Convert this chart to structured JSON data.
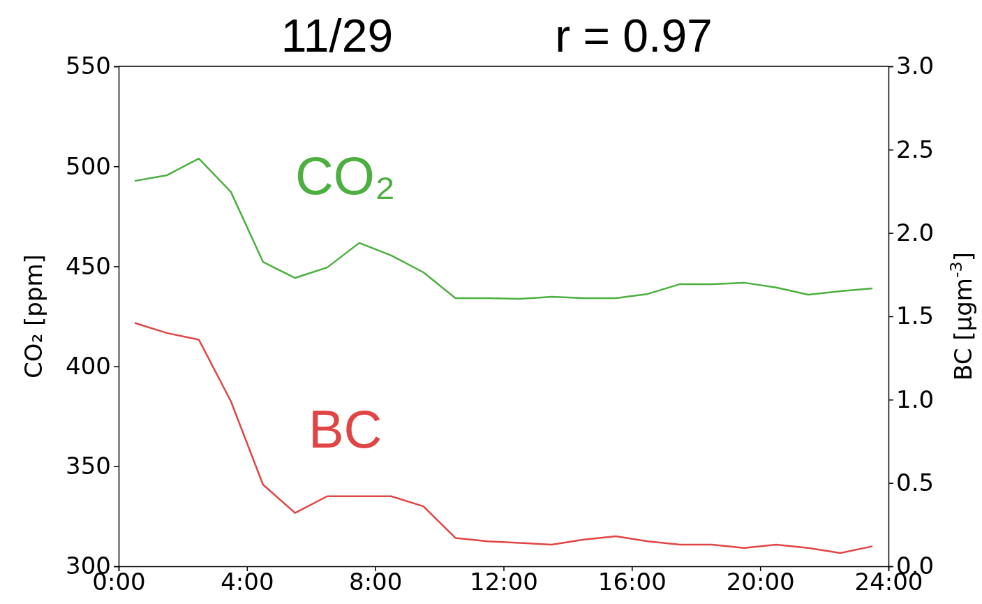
{
  "chart_data": {
    "type": "line",
    "title": "11/29",
    "annotations": [
      "r = 0.97"
    ],
    "xlabel": null,
    "ylabel": "CO₂ [ppm]",
    "y2label": "BC [μgm$^{-3}$]",
    "x": [
      0.5,
      1.5,
      2.5,
      3.5,
      4.5,
      5.5,
      6.5,
      7.5,
      8.5,
      9.5,
      10.5,
      11.5,
      12.5,
      13.5,
      14.5,
      15.5,
      16.5,
      17.5,
      18.5,
      19.5,
      20.5,
      21.5,
      22.5,
      23.5
    ],
    "xlim": [
      0,
      24
    ],
    "xticks": [
      {
        "value": 0,
        "label": "0:00"
      },
      {
        "value": 4,
        "label": "4:00"
      },
      {
        "value": 8,
        "label": "8:00"
      },
      {
        "value": 12,
        "label": "12:00"
      },
      {
        "value": 16,
        "label": "16:00"
      },
      {
        "value": 20,
        "label": "20:00"
      },
      {
        "value": 24,
        "label": "24:00"
      }
    ],
    "ylim": [
      300,
      550
    ],
    "yticks": [
      300,
      350,
      400,
      450,
      500,
      550
    ],
    "y2lim": [
      0,
      3
    ],
    "y2ticks": [
      {
        "value": 0,
        "label": "0.0"
      },
      {
        "value": 0.5,
        "label": "0.5"
      },
      {
        "value": 1,
        "label": "1.0"
      },
      {
        "value": 1.5,
        "label": "1.5"
      },
      {
        "value": 2,
        "label": "2.0"
      },
      {
        "value": 2.5,
        "label": "2.5"
      },
      {
        "value": 3,
        "label": "3.0"
      }
    ],
    "grid": false,
    "legend": false,
    "marker": "none",
    "line_style": "solid",
    "series": [
      {
        "name": "CO₂",
        "color": "#4caf3f",
        "values": [
          492.7,
          495.5,
          503.9,
          487.2,
          452.2,
          444.2,
          449.4,
          461.7,
          455.4,
          447.0,
          434.1,
          434.1,
          433.7,
          434.8,
          434.1,
          434.1,
          436.2,
          441.1,
          441.1,
          441.8,
          439.4,
          435.8,
          437.6,
          439.0
        ]
      },
      {
        "name": "BC",
        "color": "#e04545",
        "axis": "y2",
        "values": [
          1.46,
          1.4,
          1.36,
          0.99,
          0.49,
          0.32,
          0.42,
          0.42,
          0.42,
          0.36,
          0.17,
          0.15,
          0.14,
          0.13,
          0.16,
          0.18,
          0.15,
          0.13,
          0.13,
          0.11,
          0.13,
          0.11,
          0.08,
          0.12
        ]
      }
    ]
  }
}
